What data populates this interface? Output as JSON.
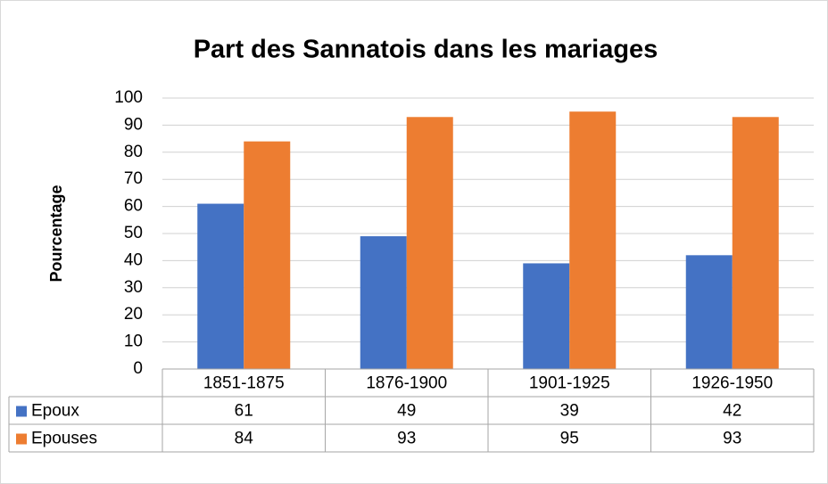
{
  "chart_data": {
    "type": "bar",
    "title": "Part des Sannatois dans les mariages",
    "y_label": "Pourcentage",
    "categories": [
      "1851-1875",
      "1876-1900",
      "1901-1925",
      "1926-1950"
    ],
    "series": [
      {
        "name": "Epoux",
        "color": "#4472c4",
        "values": [
          61,
          49,
          39,
          42
        ]
      },
      {
        "name": "Epouses",
        "color": "#ed7d31",
        "values": [
          84,
          93,
          95,
          93
        ]
      }
    ],
    "ylim": [
      0,
      100
    ],
    "yticks": [
      0,
      10,
      20,
      30,
      40,
      50,
      60,
      70,
      80,
      90,
      100
    ],
    "grid": true,
    "data_table": true
  }
}
